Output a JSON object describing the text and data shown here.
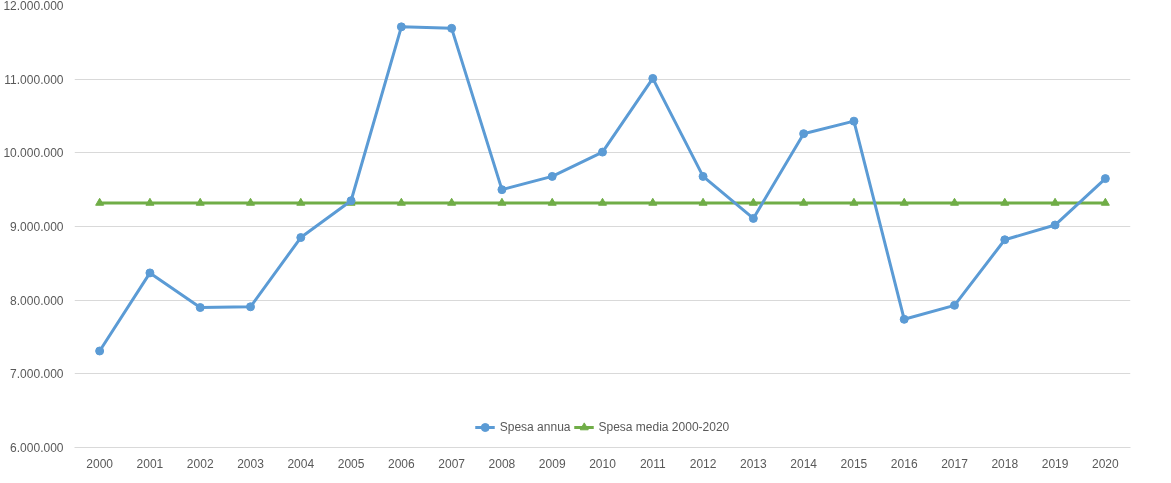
{
  "chart_data": {
    "type": "line",
    "categories": [
      "2000",
      "2001",
      "2002",
      "2003",
      "2004",
      "2005",
      "2006",
      "2007",
      "2008",
      "2009",
      "2010",
      "2011",
      "2012",
      "2013",
      "2014",
      "2015",
      "2016",
      "2017",
      "2018",
      "2019",
      "2020"
    ],
    "series": [
      {
        "name": "Spesa annua",
        "color": "#5b9bd5",
        "marker": "circle",
        "values": [
          7310000,
          8370000,
          7900000,
          7910000,
          8850000,
          9350000,
          11710000,
          11690000,
          9500000,
          9680000,
          10010000,
          11010000,
          9680000,
          9110000,
          10260000,
          10430000,
          7740000,
          7930000,
          8820000,
          9020000,
          9650000
        ]
      },
      {
        "name": "Spesa media 2000-2020",
        "color": "#70ad47",
        "marker": "triangle",
        "values": [
          9320000,
          9320000,
          9320000,
          9320000,
          9320000,
          9320000,
          9320000,
          9320000,
          9320000,
          9320000,
          9320000,
          9320000,
          9320000,
          9320000,
          9320000,
          9320000,
          9320000,
          9320000,
          9320000,
          9320000,
          9320000
        ]
      }
    ],
    "ylim": [
      6000000,
      12000000
    ],
    "yticks": [
      {
        "value": 6000000,
        "label": "6.000.000"
      },
      {
        "value": 7000000,
        "label": "7.000.000"
      },
      {
        "value": 8000000,
        "label": "8.000.000"
      },
      {
        "value": 9000000,
        "label": "9.000.000"
      },
      {
        "value": 10000000,
        "label": "10.000.000"
      },
      {
        "value": 11000000,
        "label": "11.000.000"
      },
      {
        "value": 12000000,
        "label": "12.000.000"
      }
    ],
    "grid": "y",
    "legend": "bottom",
    "line_style": "solid"
  }
}
